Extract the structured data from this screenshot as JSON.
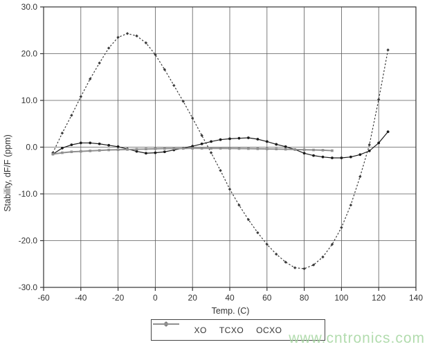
{
  "watermark": {
    "text": "www.cntronics.com",
    "color": "#a5d6a0"
  },
  "chart_data": {
    "type": "line",
    "title": "",
    "xlabel": "Temp. (C)",
    "ylabel": "Stability, dF/F (ppm)",
    "xlim": [
      -60,
      140
    ],
    "ylim": [
      -30,
      30
    ],
    "grid": true,
    "legend_position": "bottom-center",
    "x_ticks": [
      -60,
      -40,
      -20,
      0,
      20,
      40,
      60,
      80,
      100,
      120,
      140
    ],
    "x_tick_labels": [
      "-60",
      "-40",
      "-20",
      "0",
      "20",
      "40",
      "60",
      "80",
      "100",
      "120",
      "140"
    ],
    "y_ticks": [
      30,
      20,
      10,
      0,
      -10,
      -20,
      -30
    ],
    "y_tick_labels": [
      "30.0",
      "20.0",
      "10.0",
      "0.0",
      "-10.0",
      "-20.0",
      "-30.0"
    ],
    "series": [
      {
        "name": "XO",
        "line_style": "dotted",
        "color": "#3a3a3a",
        "marker": "diamond",
        "x": [
          -55,
          -50,
          -45,
          -40,
          -35,
          -30,
          -25,
          -20,
          -15,
          -10,
          -5,
          0,
          5,
          10,
          15,
          20,
          25,
          30,
          35,
          40,
          45,
          50,
          55,
          60,
          65,
          70,
          75,
          80,
          85,
          90,
          95,
          100,
          105,
          110,
          115,
          120,
          125
        ],
        "y": [
          -1.2,
          3.0,
          6.8,
          10.8,
          14.6,
          18.0,
          21.2,
          23.5,
          24.3,
          23.8,
          22.3,
          19.8,
          16.6,
          13.2,
          9.8,
          6.2,
          2.5,
          -1.2,
          -5.0,
          -9.0,
          -12.4,
          -15.5,
          -18.3,
          -20.8,
          -22.9,
          -24.6,
          -25.8,
          -26.0,
          -25.2,
          -23.5,
          -20.8,
          -17.2,
          -12.4,
          -6.3,
          0.5,
          10.2,
          20.8
        ]
      },
      {
        "name": "TCXO",
        "line_style": "solid",
        "color": "#1a1a1a",
        "marker": "circle",
        "x": [
          -55,
          -50,
          -45,
          -40,
          -35,
          -30,
          -25,
          -20,
          -15,
          -10,
          -5,
          0,
          5,
          10,
          15,
          20,
          25,
          30,
          35,
          40,
          45,
          50,
          55,
          60,
          65,
          70,
          75,
          80,
          85,
          90,
          95,
          100,
          105,
          110,
          115,
          120,
          125
        ],
        "y": [
          -1.5,
          -0.2,
          0.5,
          0.9,
          0.9,
          0.7,
          0.4,
          0.1,
          -0.4,
          -0.9,
          -1.3,
          -1.2,
          -1.0,
          -0.6,
          -0.2,
          0.2,
          0.7,
          1.2,
          1.6,
          1.8,
          1.9,
          2.0,
          1.7,
          1.2,
          0.6,
          0.1,
          -0.5,
          -1.3,
          -1.8,
          -2.1,
          -2.3,
          -2.3,
          -2.1,
          -1.6,
          -0.8,
          0.9,
          3.3
        ]
      },
      {
        "name": "OCXO",
        "line_style": "solid",
        "color": "#8f8f8f",
        "marker": "square",
        "x": [
          -55,
          -50,
          -45,
          -40,
          -35,
          -30,
          -25,
          -20,
          -15,
          -10,
          -5,
          0,
          5,
          10,
          15,
          20,
          25,
          30,
          35,
          40,
          45,
          50,
          55,
          60,
          65,
          70,
          75,
          80,
          85,
          90,
          95
        ],
        "y": [
          -1.5,
          -1.2,
          -1.0,
          -0.9,
          -0.8,
          -0.7,
          -0.6,
          -0.55,
          -0.5,
          -0.45,
          -0.4,
          -0.35,
          -0.3,
          -0.3,
          -0.28,
          -0.25,
          -0.25,
          -0.25,
          -0.25,
          -0.28,
          -0.3,
          -0.32,
          -0.35,
          -0.38,
          -0.4,
          -0.45,
          -0.5,
          -0.55,
          -0.6,
          -0.65,
          -0.75
        ]
      }
    ]
  }
}
